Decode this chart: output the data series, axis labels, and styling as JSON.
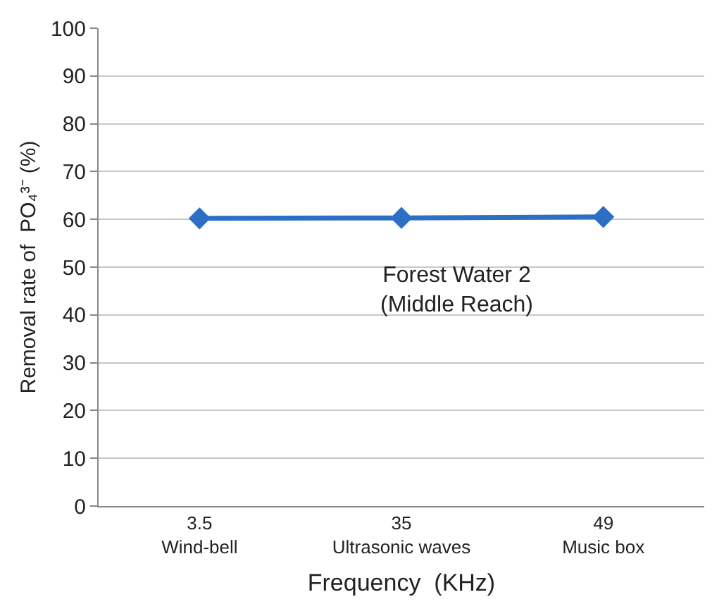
{
  "chart_data": {
    "type": "line",
    "categories": [
      "3.5\nWind-bell",
      "35\nUltrasonic waves",
      "49\nMusic box"
    ],
    "series": [
      {
        "color": "#2e6fc6",
        "values": [
          60.2,
          60.3,
          60.5
        ]
      }
    ],
    "xlabel": "Frequency  (KHz)",
    "ylabel": "Removal rate of  PO₄³⁻ (%)",
    "annotations": [
      "Forest Water 2\n(Middle Reach)"
    ],
    "ylim": [
      0,
      100
    ],
    "yticks": [
      0,
      10,
      20,
      30,
      40,
      50,
      60,
      70,
      80,
      90,
      100
    ],
    "grid": "y",
    "marker": "diamond",
    "line_style": "solid"
  }
}
